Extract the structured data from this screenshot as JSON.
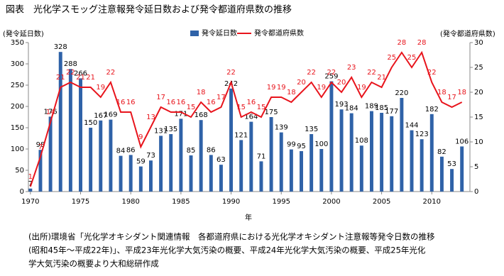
{
  "chart_data": {
    "type": "bar_line",
    "title": "図表　光化学スモッグ注意報発令延日数および発令都道府県数の推移",
    "y_label": "(発令延日数)",
    "y2_label": "(発令都道府県数)",
    "x_label": "年",
    "x": [
      1970,
      1971,
      1972,
      1973,
      1974,
      1975,
      1976,
      1977,
      1978,
      1979,
      1980,
      1981,
      1982,
      1983,
      1984,
      1985,
      1986,
      1987,
      1988,
      1989,
      1990,
      1991,
      1992,
      1993,
      1994,
      1995,
      1996,
      1997,
      1998,
      1999,
      2000,
      2001,
      2002,
      2003,
      2004,
      2005,
      2006,
      2007,
      2008,
      2009,
      2010,
      2011,
      2012,
      2013
    ],
    "series": [
      {
        "name": "発令延日数",
        "color": "#2f62a8",
        "kind": "bar",
        "values": [
          7,
          98,
          176,
          328,
          288,
          266,
          150,
          167,
          169,
          84,
          86,
          59,
          73,
          131,
          135,
          171,
          85,
          168,
          86,
          63,
          242,
          121,
          164,
          71,
          175,
          139,
          99,
          95,
          135,
          100,
          259,
          193,
          184,
          108,
          189,
          185,
          177,
          220,
          144,
          123,
          182,
          82,
          53,
          106
        ]
      },
      {
        "name": "発令都道府県数",
        "color": "#e8141c",
        "kind": "line",
        "axis": "y2",
        "values": [
          1,
          7,
          14,
          21,
          22,
          21,
          21,
          19,
          22,
          16,
          16,
          9,
          13,
          17,
          16,
          16,
          15,
          18,
          16,
          17,
          22,
          15,
          16,
          15,
          19,
          19,
          18,
          20,
          22,
          19,
          22,
          20,
          23,
          19,
          22,
          21,
          25,
          28,
          25,
          28,
          22,
          18,
          17,
          18
        ]
      }
    ],
    "xlim": [
      1969.8,
      2013.8
    ],
    "xticks": [
      1970,
      1975,
      1980,
      1985,
      1990,
      1995,
      2000,
      2005,
      2010
    ],
    "ylim": [
      0,
      350
    ],
    "yticks": [
      0,
      50,
      100,
      150,
      200,
      250,
      300,
      350
    ],
    "y2lim": [
      0,
      30
    ],
    "y2ticks": [
      0,
      5,
      10,
      15,
      20,
      25,
      30
    ],
    "note": [
      "(出所)環境省「光化学オキシダント関連情報　各都道府県における光化学オキシダント注意報等発令日数の推移",
      "(昭和45年〜平成22年)」、平成23年光化学大気汚染の概要、平成24年光化学大気汚染の概要、平成25年光化",
      "学大気汚染の概要より大和総研作成"
    ]
  }
}
